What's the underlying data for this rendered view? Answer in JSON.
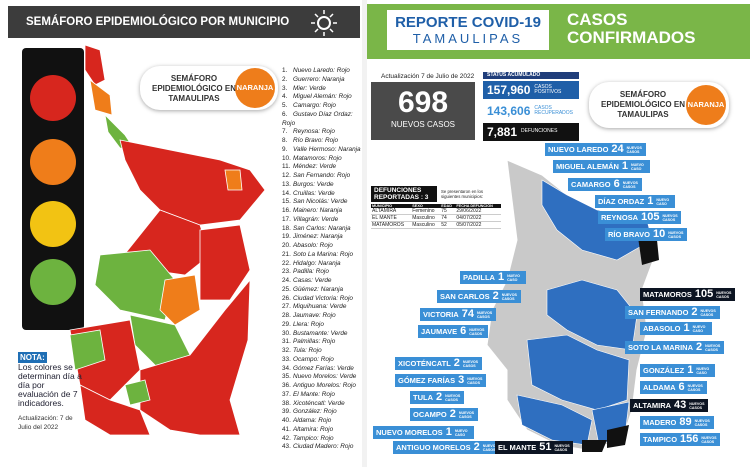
{
  "left": {
    "header": "SEMÁFORO EPIDEMIOLÓGICO POR MUNICIPIO",
    "badge": {
      "label": "SEMÁFORO EPIDEMIOLÓGICO EN TAMAULIPAS",
      "status": "NARANJA"
    },
    "municipios": [
      {
        "n": "1.",
        "text": "Nuevo Laredo: Rojo"
      },
      {
        "n": "2.",
        "text": "Guerrero: Naranja"
      },
      {
        "n": "3.",
        "text": "Mier: Verde"
      },
      {
        "n": "4.",
        "text": "Miguel Alemán: Rojo"
      },
      {
        "n": "5.",
        "text": "Camargo: Rojo"
      },
      {
        "n": "6.",
        "text": "Gustavo Díaz Ordaz: Rojo"
      },
      {
        "n": "7.",
        "text": "Reynosa: Rojo"
      },
      {
        "n": "8.",
        "text": "Río Bravo: Rojo"
      },
      {
        "n": "9.",
        "text": "Valle Hermoso: Naranja"
      },
      {
        "n": "10.",
        "text": "Matamoros: Rojo"
      },
      {
        "n": "11.",
        "text": "Méndez: Verde"
      },
      {
        "n": "12.",
        "text": "San Fernando: Rojo"
      },
      {
        "n": "13.",
        "text": "Burgos: Verde"
      },
      {
        "n": "14.",
        "text": "Cruillas: Verde"
      },
      {
        "n": "15.",
        "text": "San Nicolás: Verde"
      },
      {
        "n": "16.",
        "text": "Mainero: Naranja"
      },
      {
        "n": "17.",
        "text": "Villagrán: Verde"
      },
      {
        "n": "18.",
        "text": "San Carlos: Naranja"
      },
      {
        "n": "19.",
        "text": "Jiménez: Naranja"
      },
      {
        "n": "20.",
        "text": "Abasolo: Rojo"
      },
      {
        "n": "21.",
        "text": "Soto La Marina: Rojo"
      },
      {
        "n": "22.",
        "text": "Hidalgo: Naranja"
      },
      {
        "n": "23.",
        "text": "Padilla: Rojo"
      },
      {
        "n": "24.",
        "text": "Casas: Verde"
      },
      {
        "n": "25.",
        "text": "Güémez: Naranja"
      },
      {
        "n": "26.",
        "text": "Ciudad Victoria: Rojo"
      },
      {
        "n": "27.",
        "text": "Miquihuana: Verde"
      },
      {
        "n": "28.",
        "text": "Jaumave: Rojo"
      },
      {
        "n": "29.",
        "text": "Llera: Rojo"
      },
      {
        "n": "30.",
        "text": "Bustamante: Verde"
      },
      {
        "n": "31.",
        "text": "Palmillas: Rojo"
      },
      {
        "n": "32.",
        "text": "Tula: Rojo"
      },
      {
        "n": "33.",
        "text": "Ocampo: Rojo"
      },
      {
        "n": "34.",
        "text": "Gómez Farías: Verde"
      },
      {
        "n": "35.",
        "text": "Nuevo Morelos: Verde"
      },
      {
        "n": "36.",
        "text": "Antiguo Morelos: Rojo"
      },
      {
        "n": "37.",
        "text": "El Mante: Rojo"
      },
      {
        "n": "38.",
        "text": "Xicoténcatl: Verde"
      },
      {
        "n": "39.",
        "text": "González: Rojo"
      },
      {
        "n": "40.",
        "text": "Aldama: Rojo"
      },
      {
        "n": "41.",
        "text": "Altamira: Rojo"
      },
      {
        "n": "42.",
        "text": "Tampico: Rojo"
      },
      {
        "n": "43.",
        "text": "Ciudad Madero: Rojo"
      }
    ],
    "note": {
      "title": "NOTA:",
      "text": "Los colores se determinan día a día por evaluación de 7 indicadores."
    },
    "updated": "Actualización: 7 de Julio del 2022"
  },
  "right": {
    "header": {
      "title": "REPORTE COVID-19",
      "subtitle": "TAMAULIPAS",
      "section": "CASOS CONFIRMADOS"
    },
    "updated": "Actualización 7 de Julio de 2022",
    "new_cases": {
      "value": "698",
      "label": "NUEVOS CASOS"
    },
    "status": {
      "title": "STATUS ACUMULADO",
      "items": [
        {
          "value": "157,960",
          "label": "CASOS POSITIVOS"
        },
        {
          "value": "143,606",
          "label": "CASOS RECUPERADOS"
        },
        {
          "value": "7,881",
          "label": "DEFUNCIONES"
        }
      ]
    },
    "badge": {
      "label": "SEMÁFORO EPIDEMIOLÓGICO EN TAMAULIPAS",
      "status": "NARANJA"
    },
    "deaths": {
      "title": "DEFUNCIONES REPORTADAS : 3",
      "subtitle": "Se presentaron en los siguientes municipios:",
      "columns": [
        "MUNICIPIO",
        "SEXO",
        "EDAD",
        "FECHA DEFUNCIÓN"
      ],
      "rows": [
        [
          "ALTAMIRA",
          "Femenino",
          "75",
          "29/06/2022"
        ],
        [
          "EL MANTE",
          "Masculino",
          "74",
          "04/07/2022"
        ],
        [
          "MATAMOROS",
          "Masculino",
          "52",
          "05/07/2022"
        ]
      ]
    },
    "cases": [
      {
        "name": "NUEVO LAREDO",
        "count": "24",
        "unit": "NUEVOS CASOS"
      },
      {
        "name": "MIGUEL ALEMÁN",
        "count": "1",
        "unit": "NUEVO CASO"
      },
      {
        "name": "CAMARGO",
        "count": "6",
        "unit": "NUEVOS CASOS"
      },
      {
        "name": "DÍAZ ORDAZ",
        "count": "1",
        "unit": "NUEVO CASO"
      },
      {
        "name": "REYNOSA",
        "count": "105",
        "unit": "NUEVOS CASOS"
      },
      {
        "name": "RÍO BRAVO",
        "count": "10",
        "unit": "NUEVOS CASOS"
      },
      {
        "name": "PADILLA",
        "count": "1",
        "unit": "NUEVO CASO"
      },
      {
        "name": "SAN CARLOS",
        "count": "2",
        "unit": "NUEVOS CASOS"
      },
      {
        "name": "VICTORIA",
        "count": "74",
        "unit": "NUEVOS CASOS"
      },
      {
        "name": "JAUMAVE",
        "count": "6",
        "unit": "NUEVOS CASOS"
      },
      {
        "name": "MATAMOROS",
        "count": "105",
        "unit": "NUEVOS CASOS"
      },
      {
        "name": "SAN FERNANDO",
        "count": "2",
        "unit": "NUEVOS CASOS"
      },
      {
        "name": "ABASOLO",
        "count": "1",
        "unit": "NUEVO CASO"
      },
      {
        "name": "SOTO LA MARINA",
        "count": "2",
        "unit": "NUEVOS CASOS"
      },
      {
        "name": "GONZÁLEZ",
        "count": "1",
        "unit": "NUEVO CASO"
      },
      {
        "name": "ALDAMA",
        "count": "6",
        "unit": "NUEVOS CASOS"
      },
      {
        "name": "ALTAMIRA",
        "count": "43",
        "unit": "NUEVOS CASOS"
      },
      {
        "name": "MADERO",
        "count": "89",
        "unit": "NUEVOS CASOS"
      },
      {
        "name": "TAMPICO",
        "count": "156",
        "unit": "NUEVOS CASOS"
      },
      {
        "name": "XICOTÉNCATL",
        "count": "2",
        "unit": "NUEVOS CASOS"
      },
      {
        "name": "GÓMEZ FARÍAS",
        "count": "3",
        "unit": "NUEVOS CASOS"
      },
      {
        "name": "TULA",
        "count": "2",
        "unit": "NUEVOS CASOS"
      },
      {
        "name": "OCAMPO",
        "count": "2",
        "unit": "NUEVOS CASOS"
      },
      {
        "name": "NUEVO MORELOS",
        "count": "1",
        "unit": "NUEVO CASO"
      },
      {
        "name": "ANTIGUO MORELOS",
        "count": "2",
        "unit": "NUEVOS CASOS"
      },
      {
        "name": "EL MANTE",
        "count": "51",
        "unit": "NUEVOS CASOS"
      }
    ]
  }
}
